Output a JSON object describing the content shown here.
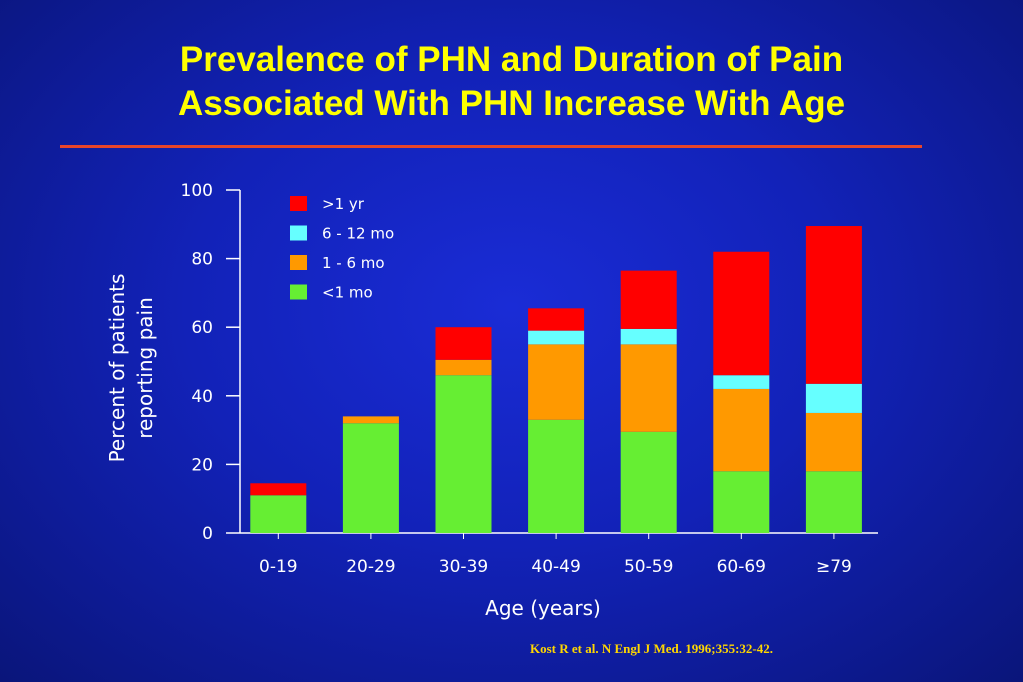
{
  "slide": {
    "title_line1": "Prevalence of PHN and Duration of Pain",
    "title_line2": "Associated With PHN Increase With Age",
    "citation": "Kost R et al. N Engl J Med. 1996;355:32-42."
  },
  "colors": {
    "title": "#ffff00",
    "rule": "#e8452a",
    "background": "#1222b8",
    "citation": "#ffd700"
  },
  "chart_data": {
    "type": "bar",
    "stacked": true,
    "title": "",
    "xlabel": "Age (years)",
    "ylabel": [
      "Percent of patients",
      "reporting pain"
    ],
    "ylim": [
      0,
      100
    ],
    "yticks": [
      0,
      20,
      40,
      60,
      80,
      100
    ],
    "categories": [
      "0-19",
      "20-29",
      "30-39",
      "40-49",
      "50-59",
      "60-69",
      "≥79"
    ],
    "series": [
      {
        "name": "<1 mo",
        "color": "#66ee33",
        "values": [
          11,
          32,
          46,
          33,
          29.5,
          18,
          18
        ]
      },
      {
        "name": "1 - 6 mo",
        "color": "#ff9900",
        "values": [
          0,
          2,
          4.5,
          22,
          25.5,
          24,
          17
        ]
      },
      {
        "name": "6 - 12 mo",
        "color": "#66ffff",
        "values": [
          0,
          0,
          0,
          4,
          4.5,
          4,
          8.5
        ]
      },
      {
        "name": ">1 yr",
        "color": "#ff0000",
        "values": [
          3.5,
          0,
          9.5,
          6.5,
          17,
          36,
          46
        ]
      }
    ],
    "legend_order": [
      ">1 yr",
      "6 - 12 mo",
      "1 - 6 mo",
      "<1 mo"
    ],
    "legend_position": "top-left",
    "grid": false
  }
}
